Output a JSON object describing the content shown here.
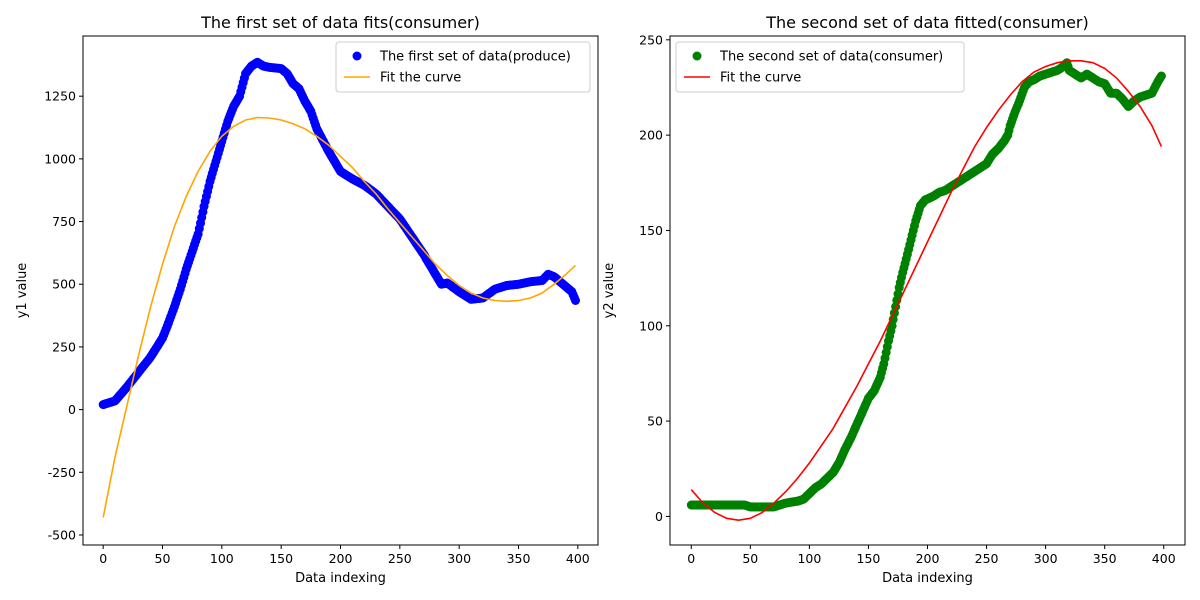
{
  "chart_data": [
    {
      "type": "scatter",
      "title": "The first set of data fits(consumer)",
      "xlabel": "Data indexing",
      "ylabel": "y1 value",
      "xlim": [
        -17,
        417
      ],
      "ylim": [
        -540,
        1490
      ],
      "xticks": [
        0,
        50,
        100,
        150,
        200,
        250,
        300,
        350,
        400
      ],
      "yticks": [
        -500,
        -250,
        0,
        250,
        500,
        750,
        1000,
        1250
      ],
      "legend_position": "upper right",
      "grid": false,
      "series": [
        {
          "name": "The first set of data(produce)",
          "kind": "scatter",
          "color": "#0000ff",
          "points": [
            [
              0,
              20
            ],
            [
              10,
              35
            ],
            [
              20,
              90
            ],
            [
              30,
              150
            ],
            [
              40,
              210
            ],
            [
              50,
              285
            ],
            [
              55,
              345
            ],
            [
              60,
              410
            ],
            [
              65,
              480
            ],
            [
              70,
              560
            ],
            [
              75,
              630
            ],
            [
              80,
              700
            ],
            [
              85,
              810
            ],
            [
              90,
              910
            ],
            [
              95,
              990
            ],
            [
              100,
              1070
            ],
            [
              105,
              1150
            ],
            [
              110,
              1210
            ],
            [
              115,
              1250
            ],
            [
              120,
              1340
            ],
            [
              125,
              1370
            ],
            [
              130,
              1385
            ],
            [
              135,
              1370
            ],
            [
              140,
              1365
            ],
            [
              150,
              1360
            ],
            [
              155,
              1340
            ],
            [
              160,
              1300
            ],
            [
              165,
              1280
            ],
            [
              170,
              1230
            ],
            [
              175,
              1190
            ],
            [
              180,
              1120
            ],
            [
              190,
              1030
            ],
            [
              200,
              950
            ],
            [
              210,
              920
            ],
            [
              220,
              895
            ],
            [
              230,
              860
            ],
            [
              240,
              810
            ],
            [
              250,
              760
            ],
            [
              260,
              690
            ],
            [
              270,
              620
            ],
            [
              280,
              540
            ],
            [
              285,
              500
            ],
            [
              290,
              505
            ],
            [
              300,
              470
            ],
            [
              310,
              440
            ],
            [
              320,
              445
            ],
            [
              330,
              480
            ],
            [
              340,
              495
            ],
            [
              350,
              500
            ],
            [
              360,
              510
            ],
            [
              370,
              515
            ],
            [
              375,
              540
            ],
            [
              380,
              530
            ],
            [
              390,
              490
            ],
            [
              395,
              470
            ],
            [
              398,
              435
            ]
          ]
        },
        {
          "name": "Fit the curve",
          "kind": "line",
          "color": "#ffa500",
          "points": [
            [
              0,
              -430
            ],
            [
              10,
              -190
            ],
            [
              20,
              15
            ],
            [
              30,
              220
            ],
            [
              40,
              410
            ],
            [
              50,
              580
            ],
            [
              60,
              730
            ],
            [
              70,
              850
            ],
            [
              80,
              950
            ],
            [
              90,
              1030
            ],
            [
              100,
              1090
            ],
            [
              110,
              1130
            ],
            [
              120,
              1155
            ],
            [
              130,
              1165
            ],
            [
              140,
              1163
            ],
            [
              150,
              1155
            ],
            [
              160,
              1140
            ],
            [
              170,
              1120
            ],
            [
              180,
              1090
            ],
            [
              190,
              1055
            ],
            [
              200,
              1010
            ],
            [
              210,
              965
            ],
            [
              220,
              910
            ],
            [
              230,
              860
            ],
            [
              240,
              800
            ],
            [
              250,
              745
            ],
            [
              260,
              690
            ],
            [
              270,
              635
            ],
            [
              280,
              580
            ],
            [
              290,
              535
            ],
            [
              300,
              495
            ],
            [
              310,
              465
            ],
            [
              320,
              445
            ],
            [
              330,
              435
            ],
            [
              340,
              432
            ],
            [
              350,
              435
            ],
            [
              360,
              445
            ],
            [
              370,
              465
            ],
            [
              380,
              500
            ],
            [
              390,
              540
            ],
            [
              398,
              575
            ]
          ]
        }
      ]
    },
    {
      "type": "scatter",
      "title": "The second set of data fitted(consumer)",
      "xlabel": "Data indexing",
      "ylabel": "y2 value",
      "xlim": [
        -18,
        418
      ],
      "ylim": [
        -15,
        252
      ],
      "xticks": [
        0,
        50,
        100,
        150,
        200,
        250,
        300,
        350,
        400
      ],
      "yticks": [
        0,
        50,
        100,
        150,
        200,
        250
      ],
      "legend_position": "upper left",
      "grid": false,
      "series": [
        {
          "name": "The second set of data(consumer)",
          "kind": "scatter",
          "color": "#008000",
          "points": [
            [
              0,
              6
            ],
            [
              10,
              6
            ],
            [
              20,
              6
            ],
            [
              30,
              6
            ],
            [
              40,
              6
            ],
            [
              45,
              6
            ],
            [
              50,
              5
            ],
            [
              60,
              5
            ],
            [
              70,
              5
            ],
            [
              80,
              7
            ],
            [
              90,
              8
            ],
            [
              95,
              9
            ],
            [
              100,
              12
            ],
            [
              105,
              15
            ],
            [
              110,
              17
            ],
            [
              115,
              20
            ],
            [
              120,
              23
            ],
            [
              125,
              28
            ],
            [
              130,
              35
            ],
            [
              135,
              41
            ],
            [
              140,
              48
            ],
            [
              145,
              55
            ],
            [
              150,
              62
            ],
            [
              155,
              66
            ],
            [
              160,
              73
            ],
            [
              163,
              80
            ],
            [
              167,
              92
            ],
            [
              170,
              100
            ],
            [
              173,
              110
            ],
            [
              176,
              120
            ],
            [
              179,
              128
            ],
            [
              182,
              135
            ],
            [
              186,
              145
            ],
            [
              190,
              155
            ],
            [
              194,
              163
            ],
            [
              198,
              166
            ],
            [
              205,
              168
            ],
            [
              210,
              170
            ],
            [
              215,
              171
            ],
            [
              220,
              173
            ],
            [
              225,
              175
            ],
            [
              230,
              177
            ],
            [
              235,
              179
            ],
            [
              240,
              181
            ],
            [
              245,
              183
            ],
            [
              250,
              185
            ],
            [
              255,
              190
            ],
            [
              260,
              193
            ],
            [
              265,
              197
            ],
            [
              268,
              200
            ],
            [
              270,
              205
            ],
            [
              274,
              212
            ],
            [
              278,
              218
            ],
            [
              282,
              225
            ],
            [
              286,
              228
            ],
            [
              290,
              229
            ],
            [
              295,
              231
            ],
            [
              300,
              232
            ],
            [
              305,
              233
            ],
            [
              310,
              234
            ],
            [
              315,
              236
            ],
            [
              318,
              238
            ],
            [
              320,
              234
            ],
            [
              325,
              232
            ],
            [
              330,
              230
            ],
            [
              335,
              232
            ],
            [
              340,
              230
            ],
            [
              345,
              228
            ],
            [
              350,
              227
            ],
            [
              355,
              222
            ],
            [
              360,
              222
            ],
            [
              365,
              219
            ],
            [
              370,
              215
            ],
            [
              375,
              218
            ],
            [
              380,
              220
            ],
            [
              385,
              221
            ],
            [
              390,
              222
            ],
            [
              395,
              228
            ],
            [
              398,
              231
            ]
          ]
        },
        {
          "name": "Fit the curve",
          "kind": "line",
          "color": "#ff0000",
          "points": [
            [
              0,
              14
            ],
            [
              10,
              7
            ],
            [
              20,
              2
            ],
            [
              30,
              -1
            ],
            [
              40,
              -2
            ],
            [
              50,
              -1
            ],
            [
              60,
              2
            ],
            [
              70,
              7
            ],
            [
              80,
              13
            ],
            [
              90,
              20
            ],
            [
              100,
              28
            ],
            [
              110,
              37
            ],
            [
              120,
              46
            ],
            [
              130,
              57
            ],
            [
              140,
              68
            ],
            [
              150,
              80
            ],
            [
              160,
              92
            ],
            [
              170,
              105
            ],
            [
              180,
              118
            ],
            [
              190,
              131
            ],
            [
              200,
              144
            ],
            [
              210,
              157
            ],
            [
              220,
              170
            ],
            [
              230,
              182
            ],
            [
              240,
              194
            ],
            [
              250,
              204
            ],
            [
              260,
              213
            ],
            [
              270,
              221
            ],
            [
              280,
              228
            ],
            [
              290,
              233
            ],
            [
              300,
              236
            ],
            [
              310,
              238
            ],
            [
              320,
              239
            ],
            [
              330,
              239
            ],
            [
              340,
              238
            ],
            [
              350,
              235
            ],
            [
              360,
              230
            ],
            [
              370,
              223
            ],
            [
              380,
              215
            ],
            [
              390,
              205
            ],
            [
              398,
              194
            ]
          ]
        }
      ]
    }
  ]
}
